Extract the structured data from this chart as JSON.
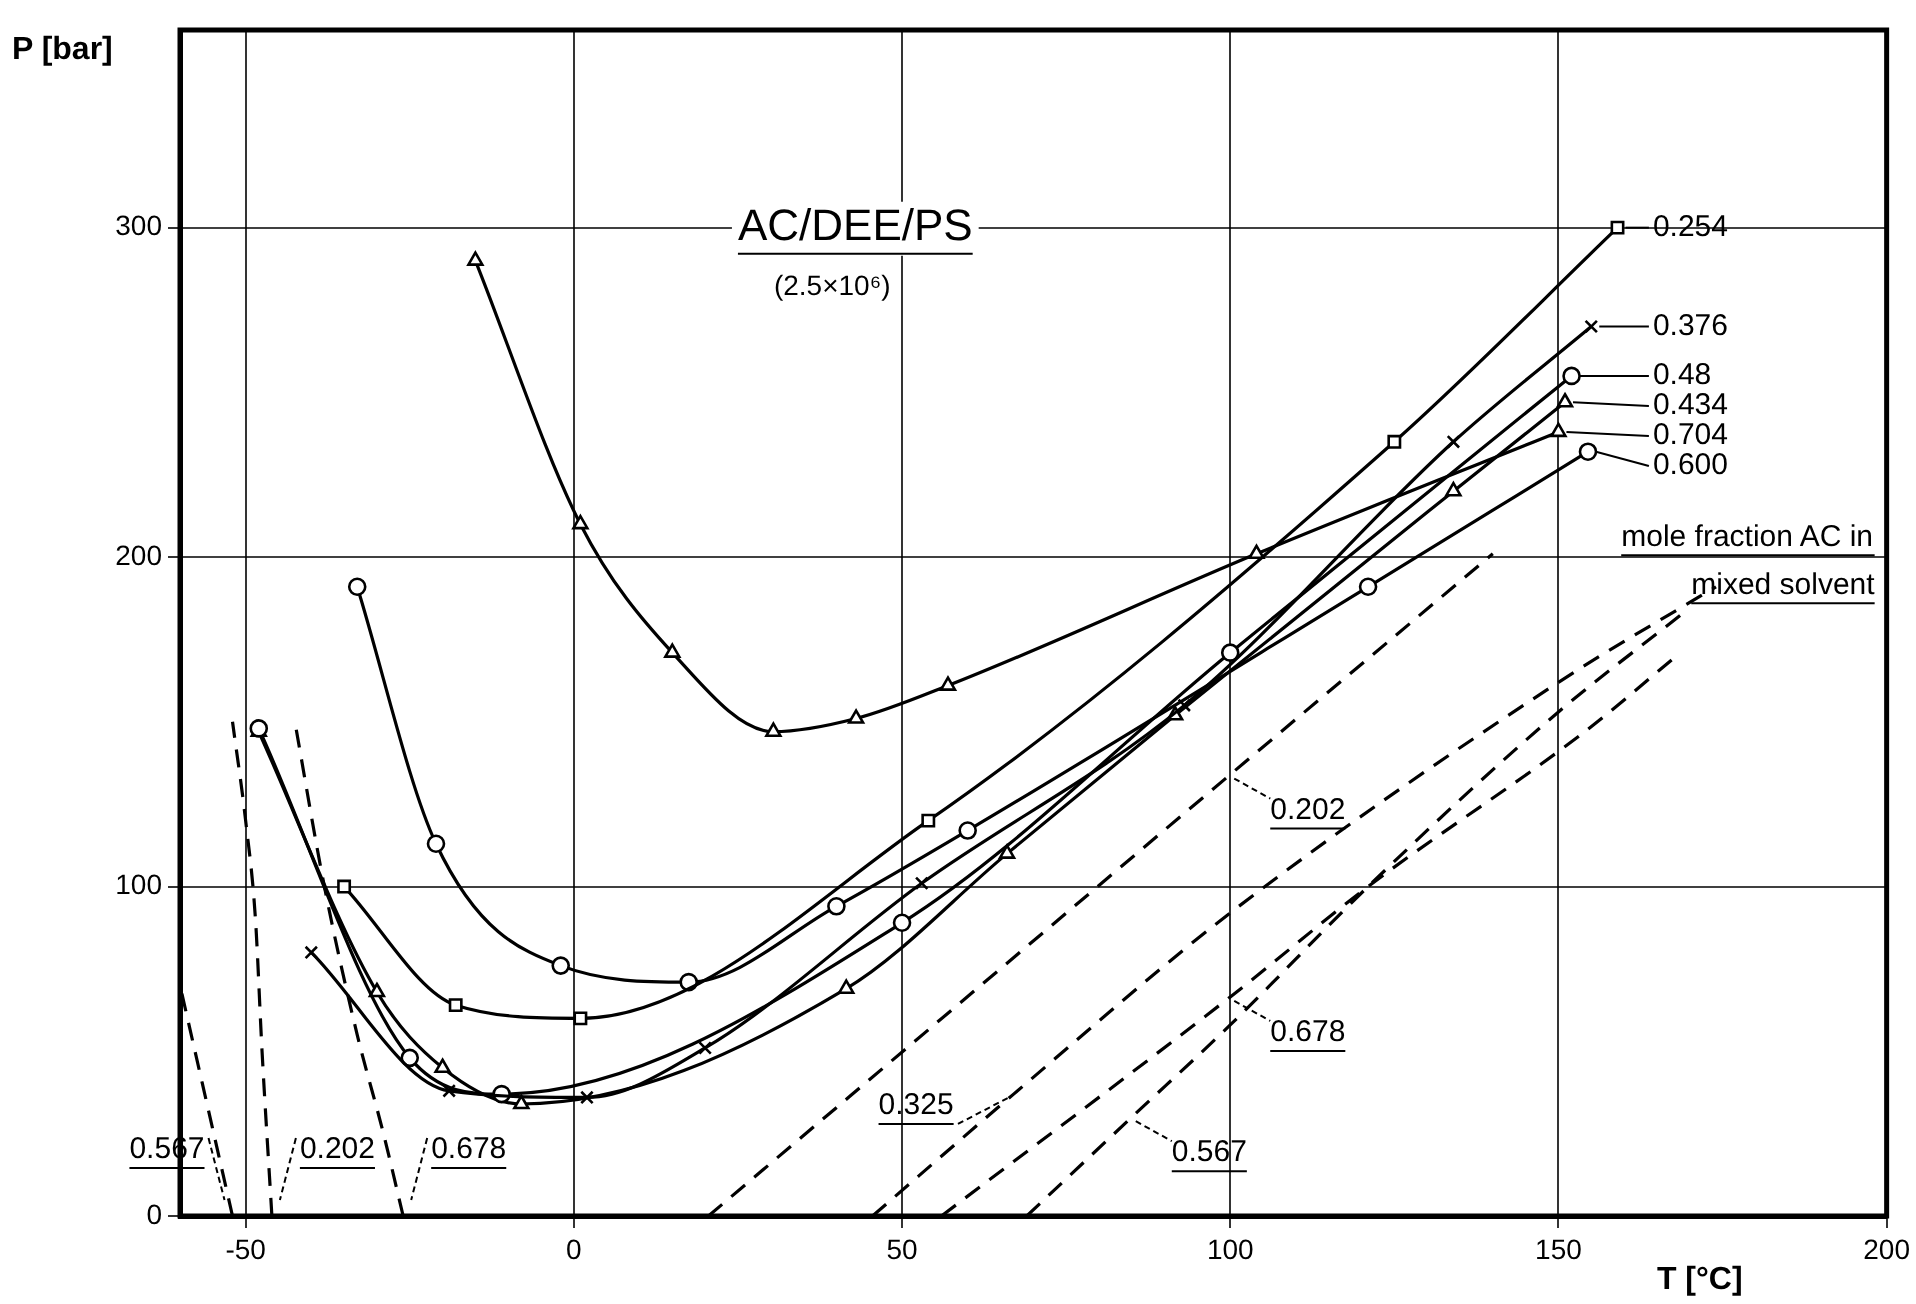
{
  "chart_data": {
    "type": "line",
    "xlabel": "T [°C]",
    "ylabel": "P [bar]",
    "legend_title": "mole fraction AC in mixed solvent",
    "annotations": [
      "AC/DEE/PS",
      "(2.5×10⁶)"
    ],
    "xlim": [
      -60,
      200
    ],
    "xticks": [
      -50,
      0,
      50,
      100,
      150,
      200
    ],
    "ylim": [
      0,
      360
    ],
    "yticks": [
      0,
      100,
      200,
      300
    ],
    "grid": true,
    "legend": "right",
    "series": [
      {
        "name": "0.254",
        "color": "#000000",
        "marker": "square",
        "x": [
          -35,
          -18,
          1,
          54,
          125,
          159
        ],
        "values": [
          100,
          64,
          60,
          120,
          235,
          300
        ]
      },
      {
        "name": "0.376",
        "color": "#000000",
        "marker": "cross",
        "x": [
          -40,
          -19,
          2,
          20,
          53,
          93,
          134,
          155
        ],
        "values": [
          80,
          38,
          36,
          51,
          101,
          155,
          235,
          270
        ]
      },
      {
        "name": "0.48",
        "color": "#000000",
        "marker": "circle",
        "x": [
          -48,
          -25,
          -11,
          50,
          100,
          152
        ],
        "values": [
          148,
          48,
          37,
          89,
          171,
          255
        ]
      },
      {
        "name": "0.434",
        "color": "#000000",
        "marker": "triangle",
        "x": [
          -48,
          -30,
          -20,
          -8,
          41.5,
          66,
          91.6,
          134,
          151
        ],
        "values": [
          147,
          68,
          45,
          34,
          69,
          110,
          152,
          220,
          247
        ]
      },
      {
        "name": "0.704",
        "color": "#000000",
        "marker": "triangle",
        "x": [
          -15,
          1,
          15,
          30.4,
          43,
          57,
          104,
          150
        ],
        "values": [
          290,
          210,
          171,
          147,
          151,
          161,
          201,
          238
        ]
      },
      {
        "name": "0.600",
        "color": "#000000",
        "marker": "circle",
        "x": [
          -33,
          -21,
          -2,
          17.5,
          40,
          60,
          121,
          154.5
        ],
        "values": [
          191,
          113,
          76,
          71,
          94,
          117,
          191,
          232
        ]
      },
      {
        "name": "0.567",
        "color": "#000000",
        "marker": "none",
        "line_style": "dashed",
        "x": [
          -52,
          -56,
          -60,
          null,
          69,
          85,
          100,
          121,
          150,
          169
        ],
        "values": [
          0,
          35,
          70,
          null,
          0,
          30,
          58,
          100,
          153,
          183
        ]
      },
      {
        "name": "0.202",
        "color": "#000000",
        "marker": "none",
        "line_style": "dashed",
        "x": [
          -46,
          -47.5,
          -48.5,
          -50,
          -52,
          null,
          20.5,
          100,
          140
        ],
        "values": [
          0,
          50,
          90,
          120,
          150,
          null,
          0,
          134,
          201
        ]
      },
      {
        "name": "0.678",
        "color": "#000000",
        "marker": "none",
        "line_style": "dashed",
        "x": [
          -26,
          -29,
          -33,
          -38,
          -42.5,
          null,
          56,
          100,
          121,
          154,
          168
        ],
        "values": [
          0,
          25,
          55,
          100,
          150,
          null,
          0,
          66.5,
          100,
          147,
          170
        ]
      },
      {
        "name": "0.325",
        "color": "#000000",
        "marker": "none",
        "line_style": "dashed",
        "x": [
          45.5,
          67,
          100,
          150,
          174
        ],
        "values": [
          0,
          37,
          92,
          162,
          191
        ]
      }
    ]
  }
}
